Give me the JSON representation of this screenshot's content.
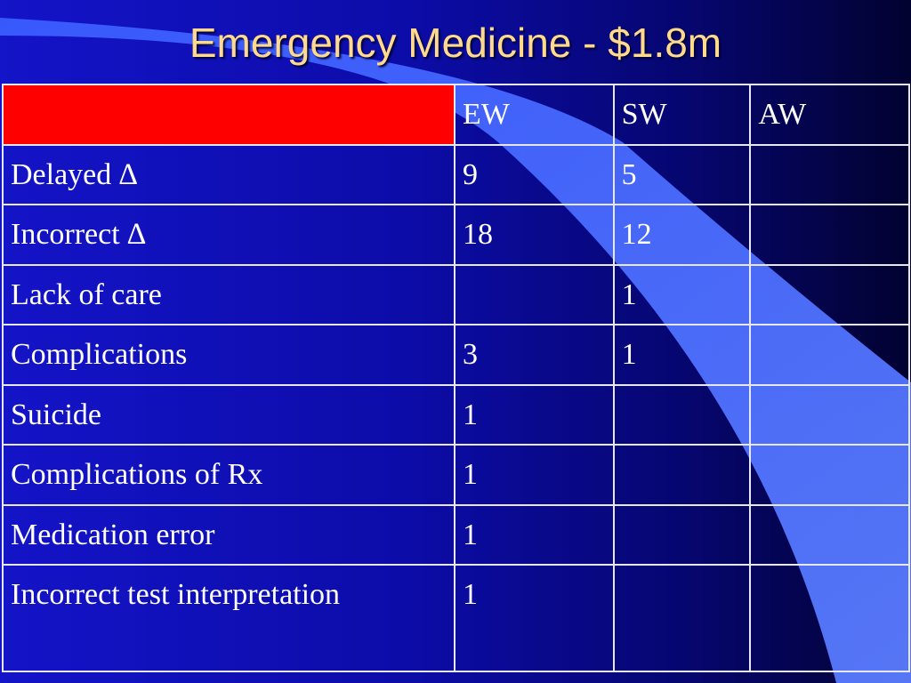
{
  "slide": {
    "title": "Emergency Medicine - $1.8m"
  },
  "table": {
    "headers": [
      "",
      "EW",
      "SW",
      "AW"
    ],
    "rows": [
      {
        "label": "Delayed ∆",
        "ew": "9",
        "sw": "5",
        "aw": ""
      },
      {
        "label": "Incorrect ∆",
        "ew": "18",
        "sw": "12",
        "aw": ""
      },
      {
        "label": "Lack of care",
        "ew": "",
        "sw": "1",
        "aw": ""
      },
      {
        "label": "Complications",
        "ew": "3",
        "sw": "1",
        "aw": ""
      },
      {
        "label": "Suicide",
        "ew": "1",
        "sw": "",
        "aw": ""
      },
      {
        "label": "Complications of Rx",
        "ew": "1",
        "sw": "",
        "aw": ""
      },
      {
        "label": "Medication error",
        "ew": "1",
        "sw": "",
        "aw": ""
      },
      {
        "label": "Incorrect test interpretation",
        "ew": "1",
        "sw": "",
        "aw": ""
      }
    ]
  },
  "colors": {
    "background": "#1414c8",
    "title": "#ffd98c",
    "header_corner": "#ff0000",
    "swoosh": "#4a6cff"
  }
}
